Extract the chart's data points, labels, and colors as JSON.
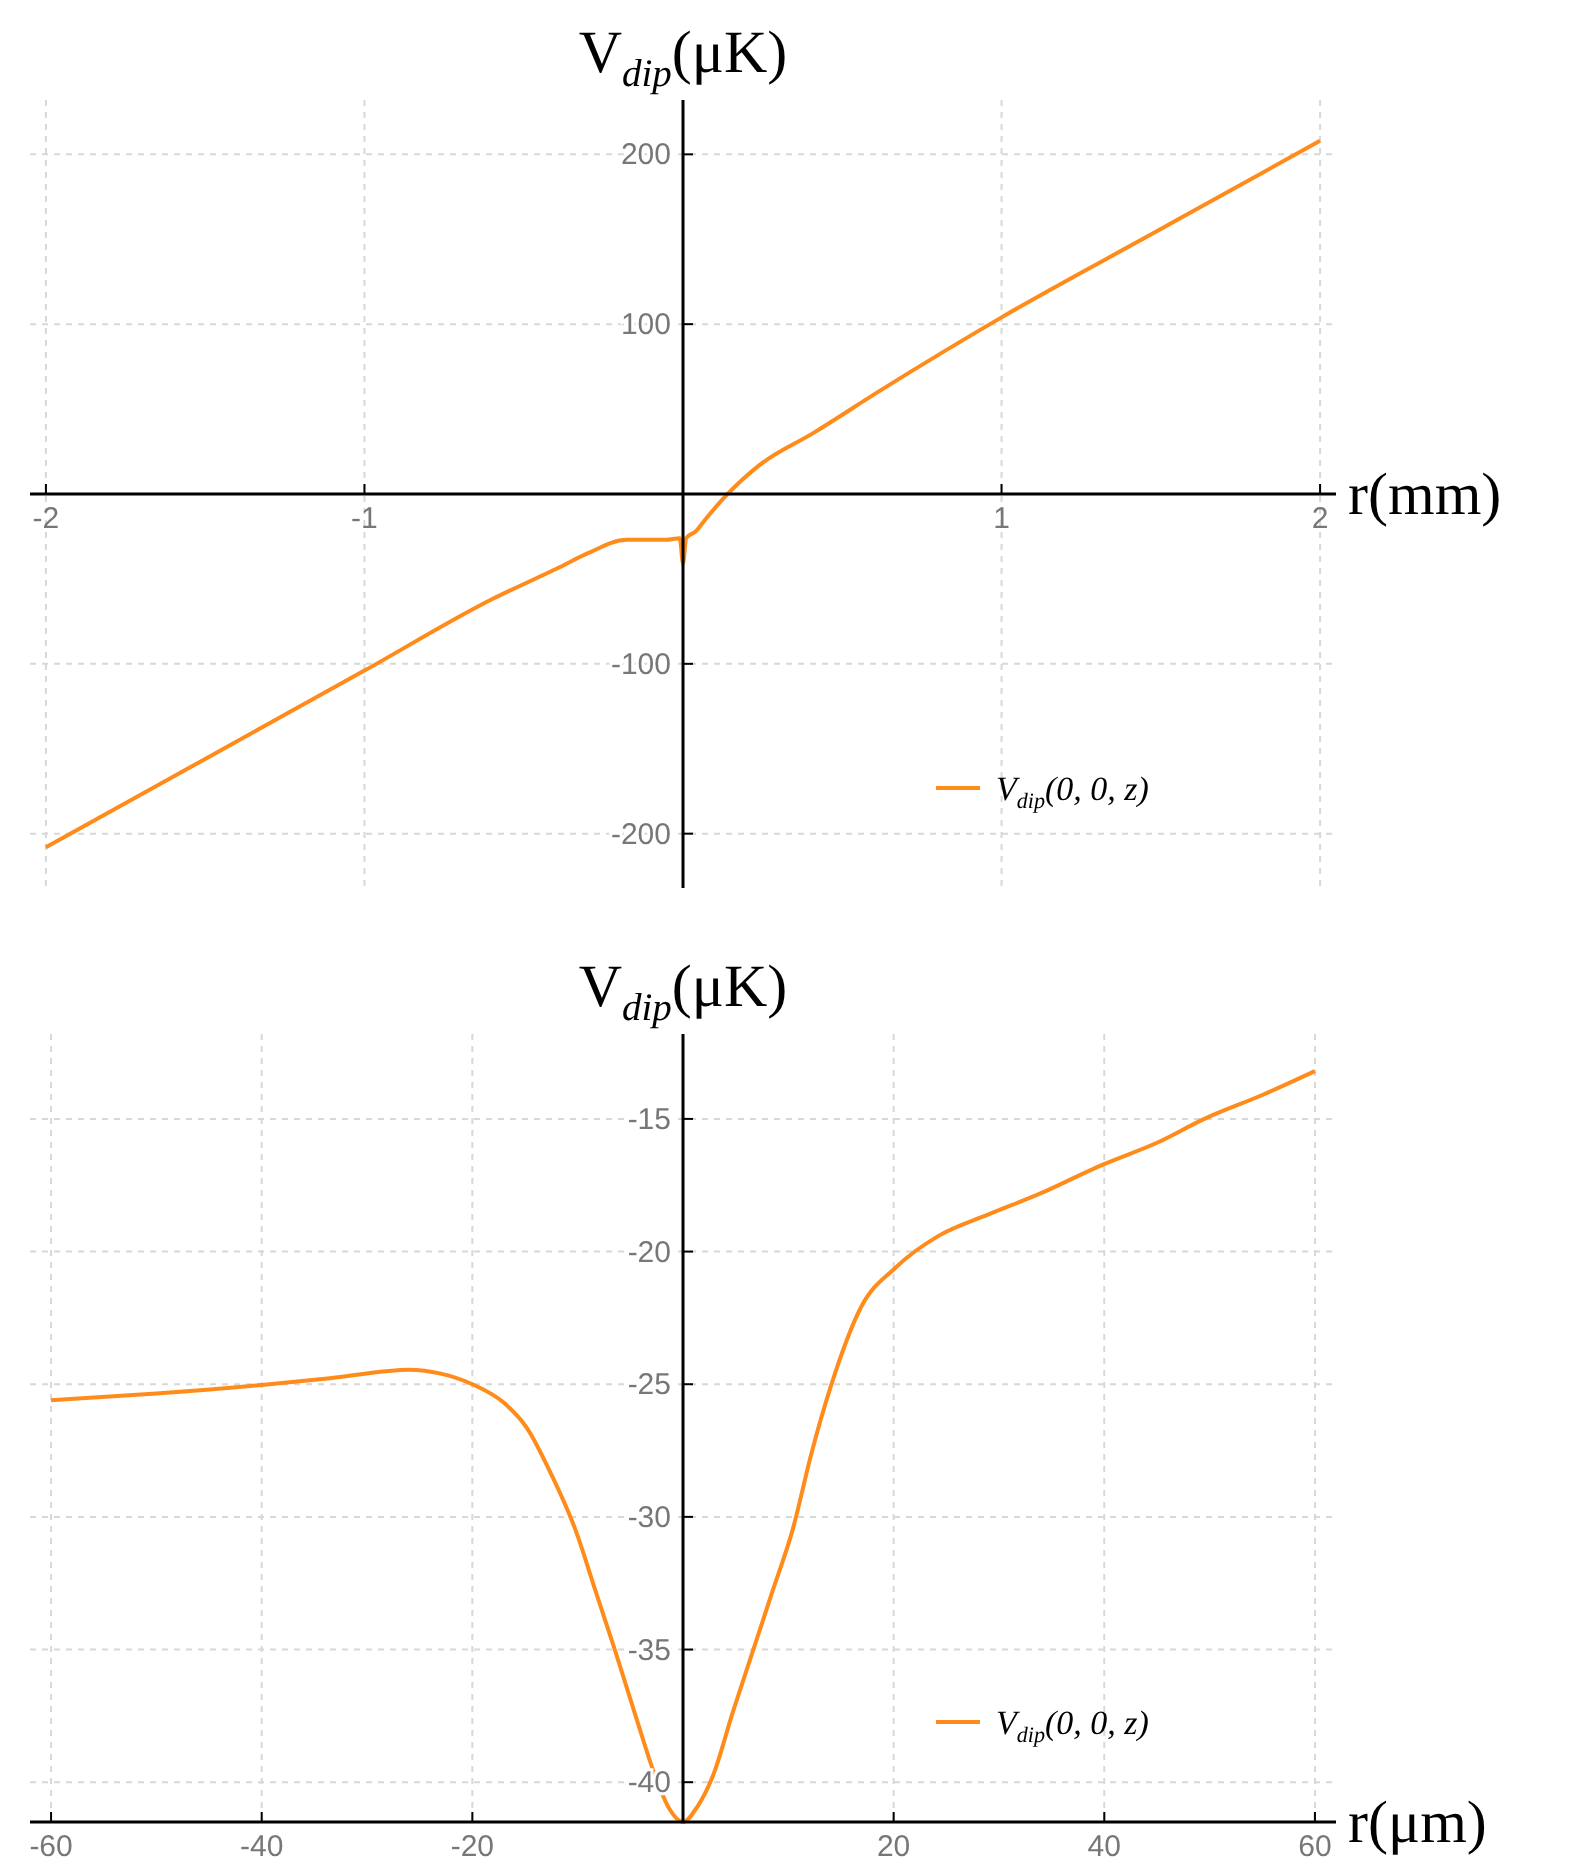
{
  "chart_data": [
    {
      "type": "line",
      "xlabel": "r(mm)",
      "ylabel": "V$_{dip}$(μK)",
      "xlim": [
        -2.05,
        2.05
      ],
      "ylim": [
        -232,
        232
      ],
      "xticks": [
        -2,
        -1,
        1,
        2
      ],
      "yticks": [
        -200,
        -100,
        100,
        200
      ],
      "grid": true,
      "legend": "bottom right",
      "line_style": "solid",
      "series": [
        {
          "name": "V$_{dip}$(0, 0, z)",
          "color": "#ff8c1a",
          "x": [
            -2,
            -1.5,
            -1,
            -0.6,
            -0.386,
            -0.3,
            -0.177,
            -0.053,
            -0.01,
            0,
            0.01,
            0.04,
            0.07,
            0.135,
            0.24,
            0.41,
            0.62,
            1,
            1.5,
            2
          ],
          "values": [
            -208,
            -156,
            -104,
            -62,
            -43,
            -35,
            -27,
            -27,
            -26,
            -41,
            -26,
            -22,
            -15,
            -1,
            17,
            36,
            61,
            104,
            156,
            208
          ]
        }
      ]
    },
    {
      "type": "line",
      "xlabel": "r(μm)",
      "ylabel": "V$_{dip}$(μK)",
      "xlim": [
        -62,
        62
      ],
      "ylim": [
        -41.5,
        -11.8
      ],
      "xticks": [
        -60,
        -40,
        -20,
        20,
        40,
        60
      ],
      "yticks": [
        -40,
        -35,
        -30,
        -25,
        -20,
        -15
      ],
      "grid": true,
      "legend": "bottom right",
      "line_style": "solid",
      "series": [
        {
          "name": "V$_{dip}$(0, 0, z)",
          "color": "#ff8c1a",
          "x": [
            -60,
            -50,
            -40,
            -33,
            -26,
            -23,
            -20,
            -17,
            -14.8,
            -12.5,
            -10.2,
            -8.3,
            -6.4,
            -4.5,
            -2.7,
            -1.3,
            0,
            1.4,
            2.9,
            4.7,
            6.6,
            8.5,
            10.4,
            12.2,
            14.1,
            16.9,
            20.2,
            24.3,
            29,
            34,
            39.7,
            45,
            49.5,
            55,
            60
          ],
          "values": [
            -25.6,
            -25.35,
            -25.03,
            -24.75,
            -24.45,
            -24.6,
            -25.0,
            -25.7,
            -26.66,
            -28.4,
            -30.5,
            -32.8,
            -35.1,
            -37.5,
            -39.7,
            -41.0,
            -41.5,
            -40.9,
            -39.7,
            -37.4,
            -35.1,
            -32.8,
            -30.5,
            -27.6,
            -25,
            -22.1,
            -20.6,
            -19.4,
            -18.6,
            -17.8,
            -16.75,
            -15.9,
            -15.0,
            -14.1,
            -13.2
          ]
        }
      ]
    }
  ]
}
